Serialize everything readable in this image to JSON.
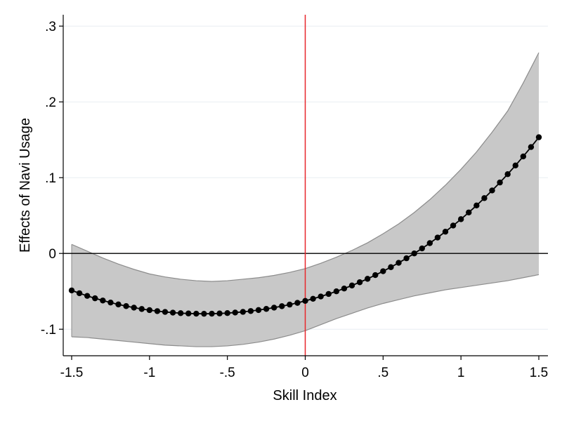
{
  "chart_data": {
    "type": "line",
    "title": "",
    "xlabel": "Skill Index",
    "ylabel": "Effects of Navi Usage",
    "xlim": [
      -1.5,
      1.5
    ],
    "ylim": [
      -0.135,
      0.315
    ],
    "xticks": [
      -1.5,
      -1,
      -0.5,
      0,
      0.5,
      1,
      1.5
    ],
    "xtick_labels": [
      "-1.5",
      "-1",
      "-.5",
      "0",
      ".5",
      "1",
      "1.5"
    ],
    "yticks": [
      -0.1,
      0,
      0.1,
      0.2,
      0.3
    ],
    "ytick_labels": [
      "-.1",
      "0",
      ".1",
      ".2",
      ".3"
    ],
    "grid": "horizontal",
    "legend": "none",
    "reference_lines": {
      "vertical_x": 0,
      "vertical_color": "#e8262b",
      "horizontal_y": 0,
      "horizontal_color": "#000000"
    },
    "colors": {
      "band_fill": "#c8c8c8",
      "band_edge": "#8c8c8c",
      "series": "#000000",
      "grid": "#e8eef2"
    },
    "series": [
      {
        "role": "point-estimate",
        "x": [
          -1.5,
          -1.45,
          -1.4,
          -1.35,
          -1.3,
          -1.25,
          -1.2,
          -1.15,
          -1.1,
          -1.05,
          -1,
          -0.95,
          -0.9,
          -0.85,
          -0.8,
          -0.75,
          -0.7,
          -0.65,
          -0.6,
          -0.55,
          -0.5,
          -0.45,
          -0.4,
          -0.35,
          -0.3,
          -0.25,
          -0.2,
          -0.15,
          -0.1,
          -0.05,
          0,
          0.05,
          0.1,
          0.15,
          0.2,
          0.25,
          0.3,
          0.35,
          0.4,
          0.45,
          0.5,
          0.55,
          0.6,
          0.65,
          0.7,
          0.75,
          0.8,
          0.85,
          0.9,
          0.95,
          1,
          1.05,
          1.1,
          1.15,
          1.2,
          1.25,
          1.3,
          1.35,
          1.4,
          1.45,
          1.5
        ],
        "y": [
          -0.0488,
          -0.0525,
          -0.056,
          -0.0592,
          -0.0621,
          -0.0648,
          -0.0673,
          -0.0695,
          -0.0715,
          -0.0733,
          -0.0748,
          -0.0761,
          -0.0772,
          -0.0781,
          -0.0788,
          -0.0792,
          -0.0795,
          -0.0796,
          -0.0795,
          -0.0792,
          -0.0787,
          -0.078,
          -0.0771,
          -0.076,
          -0.0747,
          -0.0732,
          -0.0715,
          -0.0696,
          -0.0675,
          -0.0652,
          -0.0626,
          -0.0598,
          -0.0568,
          -0.0535,
          -0.05,
          -0.0463,
          -0.0423,
          -0.038,
          -0.0335,
          -0.0286,
          -0.0235,
          -0.0181,
          -0.0124,
          -0.0064,
          0.0,
          0.0066,
          0.0136,
          0.021,
          0.0287,
          0.0368,
          0.0452,
          0.0541,
          0.0633,
          0.073,
          0.0831,
          0.0936,
          0.1046,
          0.1161,
          0.128,
          0.1404,
          0.1533
        ]
      },
      {
        "role": "ci-upper",
        "x": [
          -1.5,
          -1.4,
          -1.3,
          -1.2,
          -1.1,
          -1.0,
          -0.9,
          -0.8,
          -0.7,
          -0.6,
          -0.5,
          -0.4,
          -0.3,
          -0.2,
          -0.1,
          0.0,
          0.1,
          0.2,
          0.3,
          0.4,
          0.5,
          0.6,
          0.7,
          0.8,
          0.9,
          1.0,
          1.1,
          1.2,
          1.3,
          1.4,
          1.5
        ],
        "y": [
          0.012,
          0.003,
          -0.006,
          -0.014,
          -0.021,
          -0.027,
          -0.031,
          -0.034,
          -0.036,
          -0.037,
          -0.036,
          -0.034,
          -0.032,
          -0.029,
          -0.025,
          -0.02,
          -0.013,
          -0.005,
          0.004,
          0.014,
          0.026,
          0.039,
          0.054,
          0.071,
          0.09,
          0.111,
          0.134,
          0.16,
          0.188,
          0.225,
          0.265
        ]
      },
      {
        "role": "ci-lower",
        "x": [
          -1.5,
          -1.4,
          -1.3,
          -1.2,
          -1.1,
          -1.0,
          -0.9,
          -0.8,
          -0.7,
          -0.6,
          -0.5,
          -0.4,
          -0.3,
          -0.2,
          -0.1,
          0.0,
          0.1,
          0.2,
          0.3,
          0.4,
          0.5,
          0.6,
          0.7,
          0.8,
          0.9,
          1.0,
          1.1,
          1.2,
          1.3,
          1.4,
          1.5
        ],
        "y": [
          -0.11,
          -0.111,
          -0.113,
          -0.115,
          -0.117,
          -0.119,
          -0.121,
          -0.122,
          -0.123,
          -0.123,
          -0.122,
          -0.12,
          -0.117,
          -0.113,
          -0.108,
          -0.102,
          -0.094,
          -0.086,
          -0.079,
          -0.072,
          -0.066,
          -0.061,
          -0.056,
          -0.052,
          -0.048,
          -0.045,
          -0.042,
          -0.039,
          -0.036,
          -0.032,
          -0.028
        ]
      }
    ]
  }
}
